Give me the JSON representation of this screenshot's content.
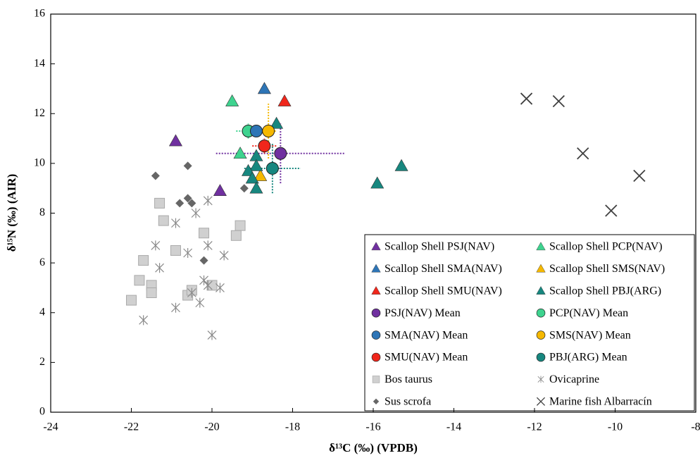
{
  "chart_data": {
    "type": "scatter",
    "xlabel": "δ¹³C (‰) (VPDB)",
    "ylabel": "δ¹⁵N (‰) (AIR)",
    "xlim": [
      -24,
      -8
    ],
    "xticks": [
      -24,
      -22,
      -20,
      -18,
      -16,
      -14,
      -12,
      -10,
      -8
    ],
    "ylim": [
      0,
      16
    ],
    "yticks": [
      0,
      2,
      4,
      6,
      8,
      10,
      12,
      14,
      16
    ],
    "legend": "lower right",
    "series": [
      {
        "name": "Scallop Shell PSJ(NAV)",
        "color": "#7030a0",
        "marker": "triangle",
        "x": [
          -20.9,
          -19.8
        ],
        "values": [
          10.9,
          8.9
        ]
      },
      {
        "name": "Scallop Shell PCP(NAV)",
        "color": "#3ed38f",
        "marker": "triangle",
        "x": [
          -19.5,
          -19.3
        ],
        "values": [
          12.5,
          10.4
        ]
      },
      {
        "name": "Scallop Shell SMA(NAV)",
        "color": "#2e75b6",
        "marker": "triangle",
        "x": [
          -18.7
        ],
        "values": [
          13.0
        ]
      },
      {
        "name": "Scallop Shell SMS(NAV)",
        "color": "#f5b800",
        "marker": "triangle",
        "x": [
          -18.8
        ],
        "values": [
          9.5
        ]
      },
      {
        "name": "Scallop Shell SMU(NAV)",
        "color": "#f0261b",
        "marker": "triangle",
        "x": [
          -18.2
        ],
        "values": [
          12.5
        ]
      },
      {
        "name": "Scallop Shell PBJ(ARG)",
        "color": "#17877f",
        "marker": "triangle",
        "x": [
          -18.4,
          -18.9,
          -18.9,
          -19.1,
          -19.0,
          -18.9,
          -15.9,
          -15.3
        ],
        "values": [
          11.6,
          10.3,
          9.9,
          9.7,
          9.4,
          9.0,
          9.2,
          9.9
        ]
      },
      {
        "name": "PSJ(NAV) Mean",
        "color": "#7030a0",
        "marker": "circle",
        "x": [
          -18.3
        ],
        "values": [
          10.4
        ],
        "xerr": [
          1.6
        ],
        "yerr": [
          1.2
        ]
      },
      {
        "name": "PCP(NAV) Mean",
        "color": "#3ed38f",
        "marker": "circle",
        "x": [
          -19.1
        ],
        "values": [
          11.3
        ],
        "xerr": [
          0.3
        ],
        "yerr": [
          0.3
        ]
      },
      {
        "name": "SMA(NAV) Mean",
        "color": "#2e75b6",
        "marker": "circle",
        "x": [
          -18.9
        ],
        "values": [
          11.3
        ],
        "xerr": [
          0.2
        ],
        "yerr": [
          0.2
        ]
      },
      {
        "name": "SMS(NAV) Mean",
        "color": "#f5b800",
        "marker": "circle",
        "x": [
          -18.6
        ],
        "values": [
          11.3
        ],
        "xerr": [
          0.2
        ],
        "yerr": [
          1.1
        ]
      },
      {
        "name": "SMU(NAV) Mean",
        "color": "#f0261b",
        "marker": "circle",
        "x": [
          -18.7
        ],
        "values": [
          10.7
        ],
        "xerr": [
          0.3
        ],
        "yerr": [
          0.3
        ]
      },
      {
        "name": "PBJ(ARG) Mean",
        "color": "#17877f",
        "marker": "circle",
        "x": [
          -18.5
        ],
        "values": [
          9.8
        ],
        "xerr": [
          0.7
        ],
        "yerr": [
          1.0
        ]
      },
      {
        "name": "Bos taurus",
        "color": "#d0d0d0",
        "marker": "square",
        "x": [
          -21.3,
          -21.2,
          -20.9,
          -21.7,
          -20.2,
          -19.3,
          -19.4,
          -21.8,
          -21.5,
          -21.5,
          -22.0,
          -20.6,
          -20.5,
          -20.0
        ],
        "values": [
          8.4,
          7.7,
          6.5,
          6.1,
          7.2,
          7.5,
          7.1,
          5.3,
          5.1,
          4.8,
          4.5,
          4.7,
          4.9,
          5.1
        ]
      },
      {
        "name": "Ovicaprine",
        "color": "#8a8a8a",
        "marker": "asterisk",
        "x": [
          -20.1,
          -20.4,
          -20.9,
          -21.4,
          -20.1,
          -20.6,
          -19.7,
          -21.3,
          -20.2,
          -20.1,
          -19.8,
          -20.5,
          -20.3,
          -20.9,
          -21.7,
          -20.0
        ],
        "values": [
          8.5,
          8.0,
          7.6,
          6.7,
          6.7,
          6.4,
          6.3,
          5.8,
          5.3,
          5.1,
          5.0,
          4.8,
          4.4,
          4.2,
          3.7,
          3.1
        ]
      },
      {
        "name": "Sus scrofa",
        "color": "#666666",
        "marker": "diamond",
        "x": [
          -21.4,
          -20.6,
          -20.8,
          -20.6,
          -20.5,
          -19.2,
          -20.2
        ],
        "values": [
          9.5,
          9.9,
          8.4,
          8.6,
          8.4,
          9.0,
          6.1
        ]
      },
      {
        "name": "Marine fish Albarracín",
        "color": "#404040",
        "marker": "x",
        "x": [
          -12.2,
          -11.4,
          -10.8,
          -9.4,
          -10.1
        ],
        "values": [
          12.6,
          12.5,
          10.4,
          9.5,
          8.1
        ]
      }
    ]
  }
}
